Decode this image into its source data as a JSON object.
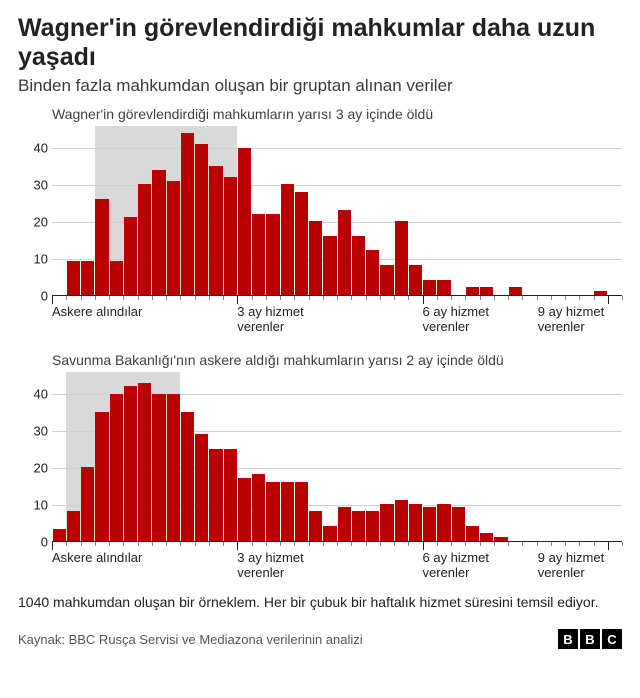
{
  "title": "Wagner'in görevlendirdiği mahkumlar daha uzun yaşadı",
  "subtitle": "Binden fazla mahkumdan oluşan bir gruptan alınan veriler",
  "footnote": "1040 mahkumdan oluşan bir örneklem. Her bir çubuk bir haftalık hizmet süresini temsil ediyor.",
  "source": "Kaynak: BBC Rusça Servisi ve Mediazona verilerinin analizi",
  "logo": [
    "B",
    "B",
    "C"
  ],
  "colors": {
    "bar": "#b80000",
    "shade": "#d9d9d9",
    "grid": "#d0d0d0",
    "axis": "#222222",
    "bg": "#ffffff"
  },
  "yaxis": {
    "min": 0,
    "max": 46,
    "ticks": [
      0,
      10,
      20,
      30,
      40
    ]
  },
  "xaxis": {
    "total_bars": 40,
    "major_ticks": [
      0,
      13,
      26,
      39
    ],
    "labels": [
      {
        "pos": 0,
        "text": "Askere alındılar"
      },
      {
        "pos": 13,
        "text": "3 ay hizmet verenler"
      },
      {
        "pos": 26,
        "text": "6 ay hizmet verenler"
      },
      {
        "pos": 39,
        "text": "9 ay hizmet verenler"
      }
    ]
  },
  "charts": [
    {
      "title": "Wagner'in görevlendirdiği mahkumların yarısı 3 ay içinde öldü",
      "shade_bars": [
        3,
        13
      ],
      "values": [
        0,
        9,
        9,
        26,
        9,
        21,
        30,
        34,
        31,
        44,
        41,
        35,
        32,
        40,
        22,
        22,
        30,
        28,
        20,
        16,
        23,
        16,
        12,
        8,
        20,
        8,
        4,
        4,
        0,
        2,
        2,
        0,
        2,
        0,
        0,
        0,
        0,
        0,
        1,
        0
      ]
    },
    {
      "title": "Savunma Bakanlığı'nın askere aldığı mahkumların yarısı 2 ay içinde öldü",
      "shade_bars": [
        1,
        9
      ],
      "values": [
        3,
        8,
        20,
        35,
        40,
        42,
        43,
        40,
        40,
        35,
        29,
        25,
        25,
        17,
        18,
        16,
        16,
        16,
        8,
        4,
        9,
        8,
        8,
        10,
        11,
        10,
        9,
        10,
        9,
        4,
        2,
        1,
        0,
        0,
        0,
        0,
        0,
        0,
        0,
        0
      ]
    }
  ]
}
